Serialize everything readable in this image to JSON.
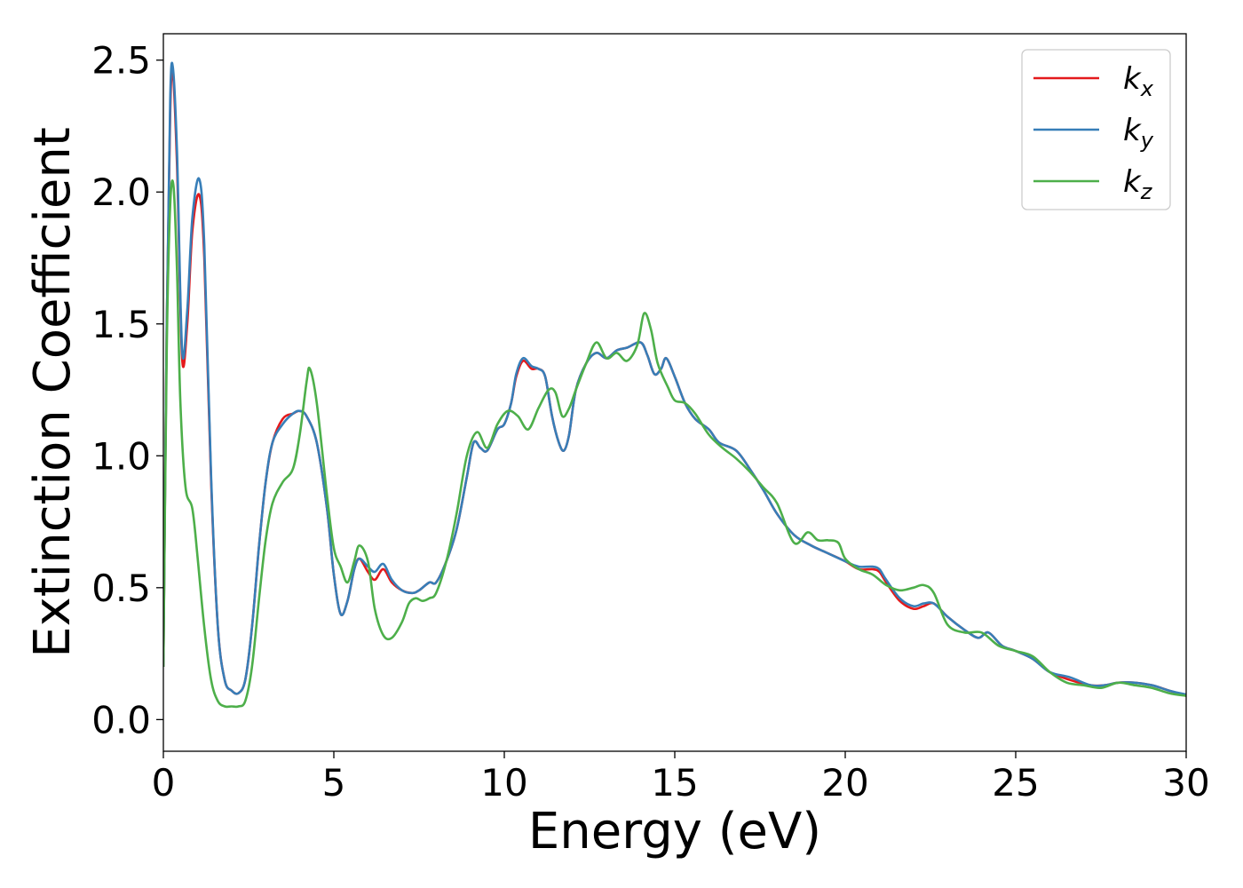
{
  "chart_data": {
    "type": "line",
    "xlabel": "Energy (eV)",
    "ylabel": "Extinction Coefficient",
    "xlim": [
      0,
      30
    ],
    "ylim": [
      -0.12,
      2.6
    ],
    "xticks": [
      0,
      5,
      10,
      15,
      20,
      25,
      30
    ],
    "yticks": [
      0.0,
      0.5,
      1.0,
      1.5,
      2.0,
      2.5
    ],
    "xtick_labels": [
      "0",
      "5",
      "10",
      "15",
      "20",
      "25",
      "30"
    ],
    "ytick_labels": [
      "0.0",
      "0.5",
      "1.0",
      "1.5",
      "2.0",
      "2.5"
    ],
    "grid": false,
    "legend_position": "top-right",
    "series": [
      {
        "name": "k_x",
        "base": "k",
        "sub": "x",
        "color": "#e41a1c",
        "x": [
          0,
          0.1,
          0.2,
          0.28,
          0.4,
          0.55,
          0.7,
          0.85,
          1.05,
          1.2,
          1.4,
          1.6,
          1.8,
          2.0,
          2.2,
          2.4,
          2.6,
          2.8,
          3.0,
          3.2,
          3.5,
          3.8,
          4.0,
          4.2,
          4.5,
          4.8,
          5.0,
          5.2,
          5.4,
          5.6,
          5.75,
          6.0,
          6.2,
          6.45,
          6.7,
          7.0,
          7.3,
          7.5,
          7.8,
          8.0,
          8.3,
          8.6,
          8.9,
          9.1,
          9.3,
          9.5,
          9.8,
          10.0,
          10.2,
          10.35,
          10.55,
          10.8,
          11.0,
          11.2,
          11.4,
          11.6,
          11.75,
          11.9,
          12.1,
          12.4,
          12.7,
          13.0,
          13.3,
          13.6,
          14.0,
          14.2,
          14.4,
          14.6,
          14.75,
          15.0,
          15.3,
          15.6,
          16.0,
          16.3,
          16.8,
          17.2,
          17.6,
          18.0,
          18.5,
          19.0,
          19.5,
          20.0,
          20.4,
          20.8,
          21.0,
          21.2,
          21.6,
          22.0,
          22.3,
          22.6,
          23.0,
          23.5,
          23.9,
          24.2,
          24.6,
          25.0,
          25.5,
          26.0,
          26.6,
          27.2,
          27.6,
          28.0,
          28.5,
          29.0,
          29.5,
          30.0
        ],
        "y": [
          0.2,
          1.5,
          2.3,
          2.45,
          2.1,
          1.37,
          1.5,
          1.85,
          1.99,
          1.75,
          0.9,
          0.35,
          0.15,
          0.11,
          0.1,
          0.15,
          0.35,
          0.65,
          0.9,
          1.05,
          1.14,
          1.16,
          1.17,
          1.15,
          1.05,
          0.8,
          0.55,
          0.4,
          0.45,
          0.57,
          0.61,
          0.56,
          0.53,
          0.57,
          0.52,
          0.49,
          0.48,
          0.49,
          0.52,
          0.52,
          0.6,
          0.72,
          0.92,
          1.05,
          1.03,
          1.02,
          1.1,
          1.12,
          1.2,
          1.3,
          1.36,
          1.33,
          1.33,
          1.3,
          1.15,
          1.05,
          1.02,
          1.08,
          1.25,
          1.35,
          1.39,
          1.37,
          1.4,
          1.41,
          1.43,
          1.38,
          1.31,
          1.33,
          1.37,
          1.3,
          1.2,
          1.14,
          1.1,
          1.05,
          1.02,
          0.95,
          0.87,
          0.78,
          0.7,
          0.66,
          0.63,
          0.6,
          0.57,
          0.57,
          0.56,
          0.52,
          0.45,
          0.42,
          0.43,
          0.44,
          0.39,
          0.34,
          0.31,
          0.33,
          0.28,
          0.26,
          0.23,
          0.18,
          0.15,
          0.13,
          0.13,
          0.14,
          0.14,
          0.13,
          0.11,
          0.09
        ]
      },
      {
        "name": "k_y",
        "base": "k",
        "sub": "y",
        "color": "#377eb8",
        "x": [
          0,
          0.1,
          0.2,
          0.28,
          0.4,
          0.55,
          0.7,
          0.85,
          1.05,
          1.2,
          1.4,
          1.6,
          1.8,
          2.0,
          2.2,
          2.4,
          2.6,
          2.8,
          3.0,
          3.2,
          3.5,
          3.8,
          4.0,
          4.2,
          4.5,
          4.8,
          5.0,
          5.2,
          5.4,
          5.6,
          5.75,
          6.0,
          6.2,
          6.45,
          6.7,
          7.0,
          7.3,
          7.5,
          7.8,
          8.0,
          8.3,
          8.6,
          8.9,
          9.1,
          9.3,
          9.5,
          9.8,
          10.0,
          10.2,
          10.35,
          10.55,
          10.8,
          11.0,
          11.2,
          11.4,
          11.6,
          11.75,
          11.9,
          12.1,
          12.4,
          12.7,
          13.0,
          13.3,
          13.6,
          14.0,
          14.2,
          14.4,
          14.6,
          14.75,
          15.0,
          15.3,
          15.6,
          16.0,
          16.3,
          16.8,
          17.2,
          17.6,
          18.0,
          18.5,
          19.0,
          19.5,
          20.0,
          20.4,
          20.8,
          21.0,
          21.2,
          21.6,
          22.0,
          22.3,
          22.6,
          23.0,
          23.5,
          23.9,
          24.2,
          24.6,
          25.0,
          25.5,
          26.0,
          26.6,
          27.2,
          27.6,
          28.0,
          28.5,
          29.0,
          29.5,
          30.0
        ],
        "y": [
          0.2,
          1.5,
          2.35,
          2.47,
          2.15,
          1.4,
          1.55,
          1.9,
          2.05,
          1.8,
          0.92,
          0.35,
          0.15,
          0.11,
          0.1,
          0.15,
          0.35,
          0.65,
          0.9,
          1.05,
          1.12,
          1.16,
          1.17,
          1.15,
          1.05,
          0.8,
          0.55,
          0.4,
          0.45,
          0.57,
          0.61,
          0.58,
          0.56,
          0.59,
          0.53,
          0.49,
          0.48,
          0.49,
          0.52,
          0.52,
          0.6,
          0.72,
          0.92,
          1.05,
          1.03,
          1.02,
          1.1,
          1.12,
          1.2,
          1.31,
          1.37,
          1.34,
          1.33,
          1.3,
          1.15,
          1.05,
          1.02,
          1.08,
          1.25,
          1.35,
          1.39,
          1.37,
          1.4,
          1.41,
          1.43,
          1.38,
          1.31,
          1.33,
          1.37,
          1.3,
          1.2,
          1.14,
          1.1,
          1.05,
          1.02,
          0.95,
          0.87,
          0.78,
          0.7,
          0.66,
          0.63,
          0.6,
          0.58,
          0.58,
          0.57,
          0.53,
          0.46,
          0.43,
          0.44,
          0.44,
          0.39,
          0.34,
          0.31,
          0.33,
          0.28,
          0.26,
          0.23,
          0.18,
          0.16,
          0.13,
          0.13,
          0.14,
          0.14,
          0.13,
          0.11,
          0.095
        ]
      },
      {
        "name": "k_z",
        "base": "k",
        "sub": "z",
        "color": "#4daf4a",
        "x": [
          0,
          0.1,
          0.2,
          0.3,
          0.4,
          0.5,
          0.65,
          0.85,
          1.0,
          1.2,
          1.4,
          1.6,
          1.8,
          2.0,
          2.2,
          2.4,
          2.6,
          2.8,
          3.0,
          3.2,
          3.5,
          3.8,
          4.0,
          4.2,
          4.3,
          4.5,
          4.8,
          5.0,
          5.2,
          5.4,
          5.6,
          5.75,
          6.0,
          6.2,
          6.45,
          6.7,
          7.0,
          7.2,
          7.4,
          7.6,
          7.8,
          8.0,
          8.3,
          8.6,
          8.9,
          9.2,
          9.5,
          9.8,
          10.1,
          10.4,
          10.7,
          11.0,
          11.3,
          11.5,
          11.7,
          11.9,
          12.1,
          12.4,
          12.7,
          13.0,
          13.3,
          13.6,
          13.9,
          14.1,
          14.3,
          14.5,
          14.8,
          15.0,
          15.3,
          15.6,
          16.0,
          16.4,
          16.8,
          17.2,
          17.6,
          18.0,
          18.5,
          18.9,
          19.2,
          19.5,
          19.8,
          20.0,
          20.4,
          20.8,
          21.2,
          21.6,
          22.0,
          22.3,
          22.6,
          23.0,
          23.5,
          24.0,
          24.5,
          25.0,
          25.5,
          26.0,
          26.5,
          27.0,
          27.5,
          28.0,
          28.5,
          29.0,
          29.5,
          30.0
        ],
        "y": [
          0.2,
          1.4,
          1.95,
          2.02,
          1.7,
          1.2,
          0.88,
          0.8,
          0.62,
          0.35,
          0.15,
          0.07,
          0.05,
          0.05,
          0.05,
          0.07,
          0.2,
          0.45,
          0.68,
          0.82,
          0.9,
          0.95,
          1.08,
          1.28,
          1.33,
          1.2,
          0.85,
          0.65,
          0.58,
          0.52,
          0.6,
          0.66,
          0.6,
          0.42,
          0.32,
          0.31,
          0.37,
          0.44,
          0.46,
          0.45,
          0.46,
          0.48,
          0.6,
          0.78,
          1.0,
          1.09,
          1.03,
          1.12,
          1.17,
          1.15,
          1.1,
          1.18,
          1.25,
          1.24,
          1.15,
          1.18,
          1.25,
          1.35,
          1.43,
          1.37,
          1.39,
          1.36,
          1.42,
          1.54,
          1.48,
          1.35,
          1.26,
          1.21,
          1.2,
          1.16,
          1.08,
          1.03,
          0.99,
          0.94,
          0.88,
          0.82,
          0.67,
          0.71,
          0.68,
          0.68,
          0.67,
          0.61,
          0.57,
          0.55,
          0.51,
          0.49,
          0.5,
          0.51,
          0.48,
          0.36,
          0.33,
          0.33,
          0.28,
          0.26,
          0.24,
          0.18,
          0.14,
          0.13,
          0.12,
          0.14,
          0.13,
          0.12,
          0.1,
          0.09
        ]
      }
    ]
  }
}
